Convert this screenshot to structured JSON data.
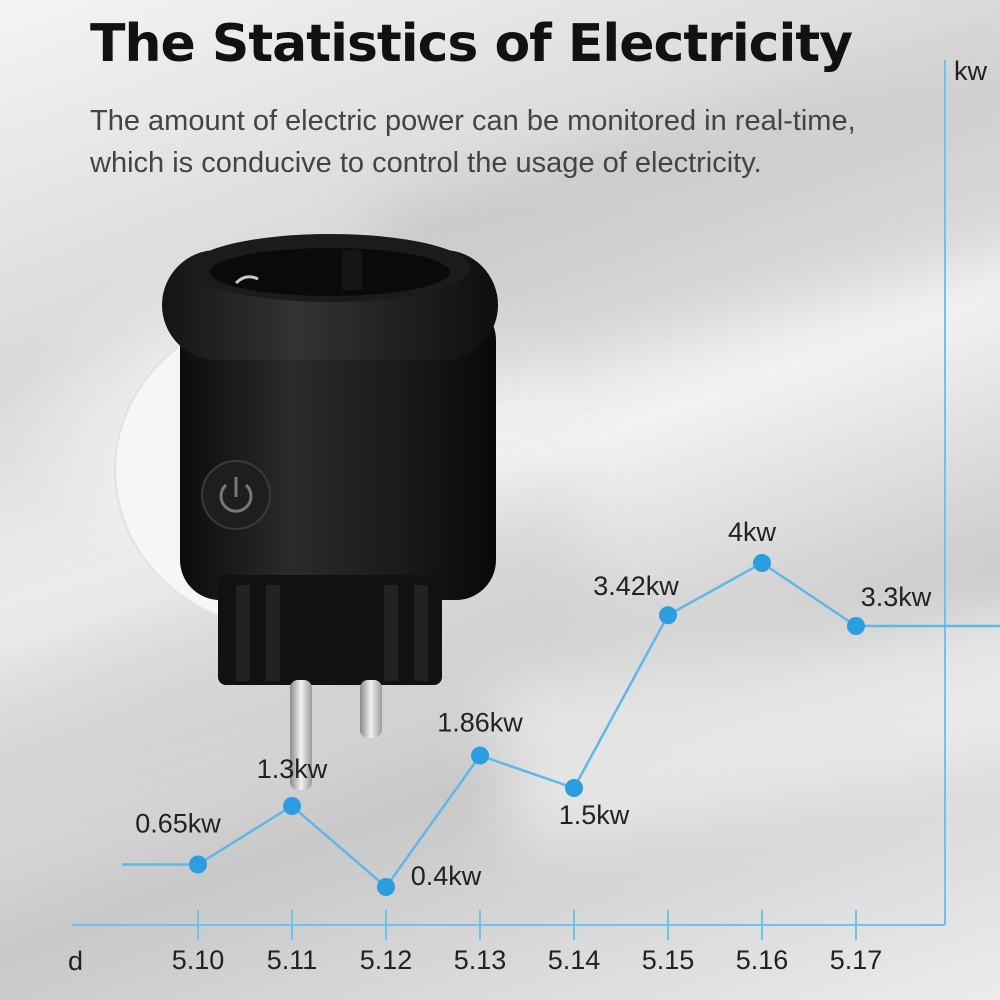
{
  "heading": {
    "title": "The Statistics of Electricity",
    "subtitle_line1": "The amount of electric power can be monitored in real-time,",
    "subtitle_line2": "which is conducive to control the usage of electricity."
  },
  "product": {
    "name": "smart plug",
    "button_icon": "power-icon"
  },
  "colors": {
    "line": "#5fb8e6",
    "point": "#2a9ee0",
    "axis": "#6cc4ec",
    "text": "#222222"
  },
  "chart_data": {
    "type": "line",
    "title": "",
    "xlabel": "d",
    "ylabel": "kw",
    "categories": [
      "5.10",
      "5.11",
      "5.12",
      "5.13",
      "5.14",
      "5.15",
      "5.16",
      "5.17"
    ],
    "values": [
      0.65,
      1.3,
      0.4,
      1.86,
      1.5,
      3.42,
      4,
      3.3
    ],
    "data_labels": [
      "0.65kw",
      "1.3kw",
      "0.4kw",
      "1.86kw",
      "1.5kw",
      "3.42kw",
      "4kw",
      "3.3kw"
    ],
    "ylim": [
      0,
      4.5
    ],
    "grid": false,
    "legend": "none"
  }
}
